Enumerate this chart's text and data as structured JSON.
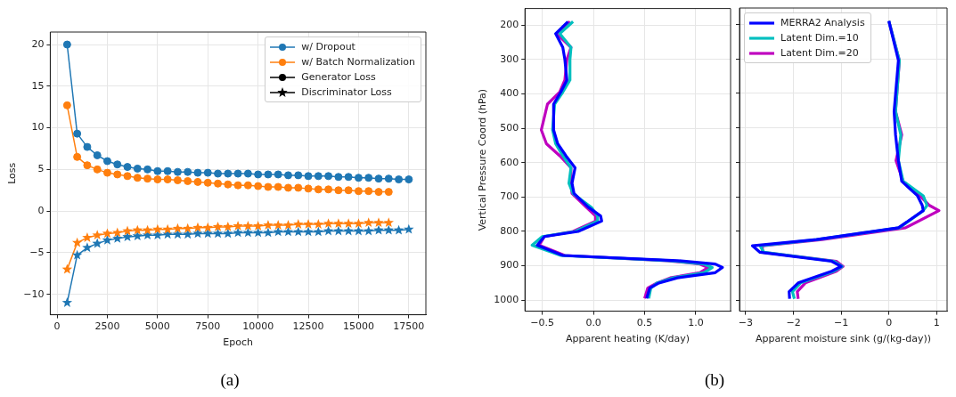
{
  "chart_data": [
    {
      "type": "line",
      "xlabel": "Epoch",
      "ylabel": "Loss",
      "xlim": [
        -340,
        18350
      ],
      "ylim": [
        -12.45,
        21.5
      ],
      "xticks": [
        0,
        2500,
        5000,
        7500,
        10000,
        12500,
        15000,
        17500
      ],
      "yticks": [
        -10,
        -5,
        0,
        5,
        10,
        15,
        20
      ],
      "grid": true,
      "legend": "top right",
      "annotations": [
        "(a)"
      ],
      "series": [
        {
          "name": "w/ Dropout",
          "color": "#1f77b4",
          "marker": "circle",
          "x": [
            500,
            1000,
            1500,
            2000,
            2500,
            3000,
            3500,
            4000,
            4500,
            5000,
            5500,
            6000,
            6500,
            7000,
            7500,
            8000,
            8500,
            9000,
            9500,
            10000,
            10500,
            11000,
            11500,
            12000,
            12500,
            13000,
            13500,
            14000,
            14500,
            15000,
            15500,
            16000,
            16500,
            17000,
            17500
          ],
          "values": [
            20.0,
            9.3,
            7.7,
            6.7,
            6.0,
            5.6,
            5.3,
            5.1,
            5.0,
            4.8,
            4.8,
            4.7,
            4.7,
            4.6,
            4.6,
            4.5,
            4.5,
            4.5,
            4.5,
            4.4,
            4.4,
            4.4,
            4.3,
            4.3,
            4.2,
            4.2,
            4.2,
            4.1,
            4.1,
            4.0,
            4.0,
            3.9,
            3.9,
            3.8,
            3.8
          ]
        },
        {
          "name": "w/ Batch Normalization",
          "color": "#ff7f0e",
          "marker": "circle",
          "x": [
            500,
            1000,
            1500,
            2000,
            2500,
            3000,
            3500,
            4000,
            4500,
            5000,
            5500,
            6000,
            6500,
            7000,
            7500,
            8000,
            8500,
            9000,
            9500,
            10000,
            10500,
            11000,
            11500,
            12000,
            12500,
            13000,
            13500,
            14000,
            14500,
            15000,
            15500,
            16000,
            16500
          ],
          "values": [
            12.7,
            6.5,
            5.5,
            5.0,
            4.6,
            4.4,
            4.2,
            4.0,
            3.9,
            3.8,
            3.8,
            3.7,
            3.6,
            3.5,
            3.4,
            3.3,
            3.2,
            3.1,
            3.1,
            3.0,
            2.9,
            2.9,
            2.8,
            2.8,
            2.7,
            2.6,
            2.6,
            2.5,
            2.5,
            2.4,
            2.4,
            2.3,
            2.3
          ]
        },
        {
          "color": "#1f77b4",
          "marker": "star",
          "x": [
            500,
            1000,
            1500,
            2000,
            2500,
            3000,
            3500,
            4000,
            4500,
            5000,
            5500,
            6000,
            6500,
            7000,
            7500,
            8000,
            8500,
            9000,
            9500,
            10000,
            10500,
            11000,
            11500,
            12000,
            12500,
            13000,
            13500,
            14000,
            14500,
            15000,
            15500,
            16000,
            16500,
            17000,
            17500
          ],
          "values": [
            -11.0,
            -5.3,
            -4.4,
            -3.9,
            -3.5,
            -3.3,
            -3.1,
            -3.0,
            -2.9,
            -2.9,
            -2.8,
            -2.8,
            -2.8,
            -2.7,
            -2.7,
            -2.7,
            -2.7,
            -2.6,
            -2.6,
            -2.6,
            -2.6,
            -2.5,
            -2.5,
            -2.5,
            -2.5,
            -2.5,
            -2.4,
            -2.4,
            -2.4,
            -2.4,
            -2.4,
            -2.3,
            -2.3,
            -2.3,
            -2.2
          ]
        },
        {
          "color": "#ff7f0e",
          "marker": "star",
          "x": [
            500,
            1000,
            1500,
            2000,
            2500,
            3000,
            3500,
            4000,
            4500,
            5000,
            5500,
            6000,
            6500,
            7000,
            7500,
            8000,
            8500,
            9000,
            9500,
            10000,
            10500,
            11000,
            11500,
            12000,
            12500,
            13000,
            13500,
            14000,
            14500,
            15000,
            15500,
            16000,
            16500
          ],
          "values": [
            -7.0,
            -3.8,
            -3.2,
            -2.9,
            -2.7,
            -2.6,
            -2.4,
            -2.3,
            -2.3,
            -2.2,
            -2.2,
            -2.1,
            -2.1,
            -2.0,
            -2.0,
            -1.9,
            -1.9,
            -1.8,
            -1.8,
            -1.8,
            -1.7,
            -1.7,
            -1.7,
            -1.6,
            -1.6,
            -1.6,
            -1.5,
            -1.5,
            -1.5,
            -1.5,
            -1.4,
            -1.4,
            -1.4
          ]
        },
        {
          "name": "Generator Loss",
          "color": "#000000",
          "marker": "circle"
        },
        {
          "name": "Discriminator Loss",
          "color": "#000000",
          "marker": "star"
        }
      ]
    },
    {
      "type": "line",
      "xlabel": "Apparent heating (K/day)",
      "ylabel": "Vertical Pressure Coord (hPa)",
      "xlim": [
        -0.67,
        1.34
      ],
      "ylim": [
        1032,
        152
      ],
      "xticks": [
        {
          "value": -0.5,
          "label": "−0.5"
        },
        {
          "value": 0,
          "label": "0.0"
        },
        {
          "value": 0.5,
          "label": "0.5"
        },
        {
          "value": 1,
          "label": "1.0"
        }
      ],
      "yticks": [
        200,
        300,
        400,
        500,
        600,
        700,
        800,
        900,
        1000
      ],
      "grid": true,
      "legend": false,
      "marker": "none",
      "annotations": [
        "(b)"
      ],
      "series": [
        {
          "color": "#0000ff",
          "x": [
            -0.25,
            -0.37,
            -0.3,
            -0.28,
            -0.26,
            -0.32,
            -0.39,
            -0.39,
            -0.35,
            -0.27,
            -0.18,
            -0.21,
            -0.19,
            -0.05,
            0.07,
            0.08,
            -0.15,
            -0.48,
            -0.55,
            -0.3,
            0.82,
            1.19,
            1.26,
            1.19,
            0.82,
            0.64,
            0.55,
            0.52
          ],
          "values": [
            190,
            225,
            265,
            300,
            360,
            395,
            430,
            505,
            545,
            580,
            615,
            660,
            690,
            730,
            755,
            770,
            800,
            815,
            840,
            870,
            885,
            895,
            905,
            920,
            935,
            950,
            965,
            995
          ]
        },
        {
          "color": "#00bfbf",
          "x": [
            -0.2,
            -0.33,
            -0.22,
            -0.23,
            -0.23,
            -0.3,
            -0.38,
            -0.4,
            -0.37,
            -0.3,
            -0.22,
            -0.24,
            -0.2,
            -0.02,
            0.04,
            0.04,
            -0.18,
            -0.5,
            -0.6,
            -0.32,
            0.75,
            1.08,
            1.16,
            1.08,
            0.78,
            0.62,
            0.56,
            0.54
          ],
          "values": [
            190,
            225,
            265,
            300,
            360,
            395,
            430,
            505,
            545,
            580,
            615,
            660,
            690,
            730,
            755,
            770,
            800,
            815,
            840,
            870,
            885,
            895,
            905,
            920,
            935,
            950,
            965,
            995
          ]
        },
        {
          "color": "#bf00bf",
          "x": [
            -0.23,
            -0.36,
            -0.22,
            -0.26,
            -0.28,
            -0.33,
            -0.45,
            -0.51,
            -0.46,
            -0.33,
            -0.22,
            -0.22,
            -0.21,
            -0.07,
            0.02,
            0.02,
            -0.2,
            -0.48,
            -0.53,
            -0.28,
            0.72,
            1.04,
            1.12,
            1.04,
            0.75,
            0.62,
            0.53,
            0.5
          ],
          "values": [
            190,
            225,
            265,
            300,
            360,
            395,
            430,
            505,
            545,
            580,
            615,
            660,
            690,
            730,
            755,
            770,
            800,
            815,
            840,
            870,
            885,
            895,
            905,
            920,
            935,
            950,
            965,
            995
          ]
        }
      ]
    },
    {
      "type": "line",
      "xlabel": "Apparent moisture sink (g/(kg-day))",
      "xlim": [
        -3.13,
        1.22
      ],
      "ylim": [
        1032,
        152
      ],
      "xticks": [
        {
          "value": -3,
          "label": "−3"
        },
        {
          "value": -2,
          "label": "−2"
        },
        {
          "value": -1,
          "label": "−1"
        },
        0,
        1
      ],
      "yticks": [
        200,
        300,
        400,
        500,
        600,
        700,
        800,
        900,
        1000
      ],
      "tick_labels": "x",
      "grid": true,
      "legend": "top left",
      "marker": "none",
      "series": [
        {
          "name": "MERRA2 Analysis",
          "color": "#0000ff",
          "x": [
            0.0,
            0.2,
            0.11,
            0.14,
            0.2,
            0.27,
            0.6,
            0.7,
            0.72,
            0.2,
            -1.52,
            -2.86,
            -2.7,
            -1.2,
            -1.0,
            -1.2,
            -1.9,
            -2.09,
            -2.08
          ],
          "values": [
            190,
            304,
            452,
            520,
            595,
            655,
            697,
            725,
            740,
            790,
            824,
            842,
            861,
            887,
            902,
            916,
            950,
            975,
            996
          ]
        },
        {
          "name": "Latent Dim.=10",
          "color": "#00bfbf",
          "x": [
            0.0,
            0.22,
            0.14,
            0.25,
            0.2,
            0.3,
            0.72,
            0.8,
            0.72,
            0.22,
            -1.5,
            -2.7,
            -2.62,
            -1.15,
            -0.98,
            -1.15,
            -1.85,
            -2.02,
            -1.98
          ],
          "values": [
            190,
            304,
            452,
            520,
            595,
            655,
            697,
            725,
            740,
            790,
            824,
            842,
            861,
            887,
            902,
            916,
            950,
            975,
            996
          ]
        },
        {
          "name": "Latent Dim.=20",
          "color": "#bf00bf",
          "x": [
            0.0,
            0.22,
            0.14,
            0.27,
            0.15,
            0.3,
            0.65,
            0.85,
            1.05,
            0.35,
            -1.4,
            -2.65,
            -2.65,
            -1.1,
            -0.96,
            -1.1,
            -1.75,
            -1.92,
            -1.9
          ],
          "values": [
            190,
            304,
            452,
            520,
            595,
            655,
            697,
            725,
            740,
            790,
            824,
            842,
            861,
            887,
            902,
            916,
            950,
            975,
            996
          ]
        }
      ]
    }
  ]
}
